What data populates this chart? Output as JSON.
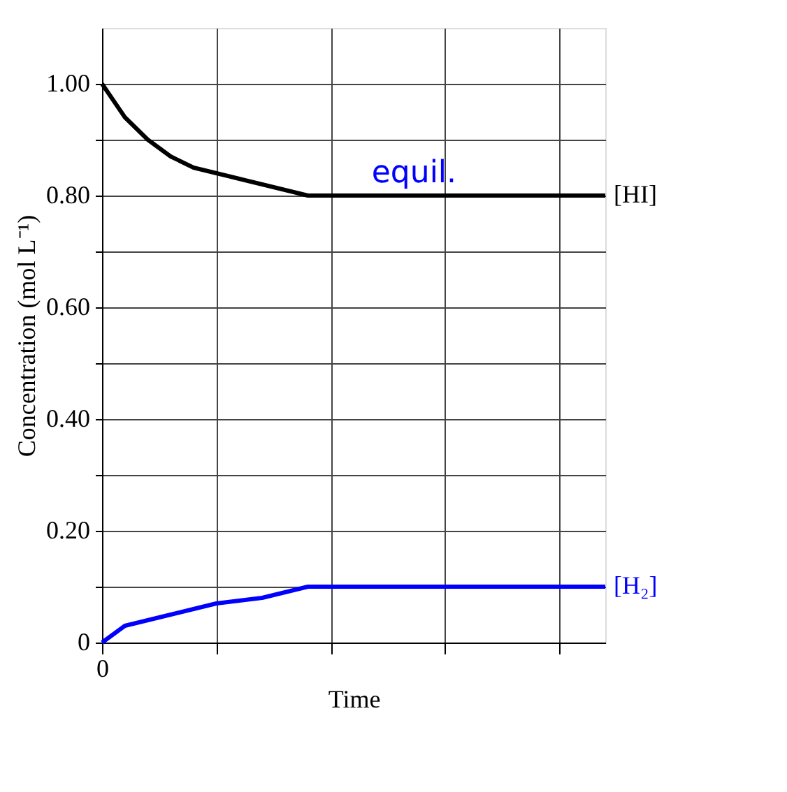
{
  "chart_data": {
    "type": "line",
    "xlabel": "Time",
    "ylabel": "Concentration (mol L⁻¹)",
    "categories": [
      "0",
      null,
      null,
      null,
      null,
      null,
      null,
      null,
      null,
      null,
      null,
      null,
      null,
      null,
      null,
      null,
      null,
      null,
      null,
      null,
      null,
      null,
      null
    ],
    "ylim": [
      0,
      1.1
    ],
    "yticks": [
      {
        "value": 0,
        "label": "0"
      },
      {
        "value": 0.1,
        "label": null
      },
      {
        "value": 0.2,
        "label": "0.20"
      },
      {
        "value": 0.3,
        "label": null
      },
      {
        "value": 0.4,
        "label": "0.40"
      },
      {
        "value": 0.5,
        "label": null
      },
      {
        "value": 0.6,
        "label": "0.60"
      },
      {
        "value": 0.7,
        "label": null
      },
      {
        "value": 0.8,
        "label": "0.80"
      },
      {
        "value": 0.9,
        "label": null
      },
      {
        "value": 1.0,
        "label": "1.00"
      }
    ],
    "grid": true,
    "legend": false,
    "marker": "none",
    "line_style": "solid",
    "series": [
      {
        "name": "[HI]",
        "color": "#000000",
        "values": [
          1.0,
          0.94,
          0.9,
          0.87,
          0.85,
          0.84,
          0.83,
          0.82,
          0.81,
          0.8,
          0.8,
          0.8,
          0.8,
          0.8,
          0.8,
          0.8,
          0.8,
          0.8,
          0.8,
          0.8,
          0.8,
          0.8,
          0.8
        ]
      },
      {
        "name": "[H₂]",
        "color": "#0000ff",
        "values": [
          0,
          0.03,
          0.04,
          0.05,
          0.06,
          0.07,
          0.075,
          0.08,
          0.09,
          0.1,
          0.1,
          0.1,
          0.1,
          0.1,
          0.1,
          0.1,
          0.1,
          0.1,
          0.1,
          0.1,
          0.1,
          0.1,
          0.1
        ]
      }
    ],
    "annotations": [
      "equil."
    ]
  }
}
